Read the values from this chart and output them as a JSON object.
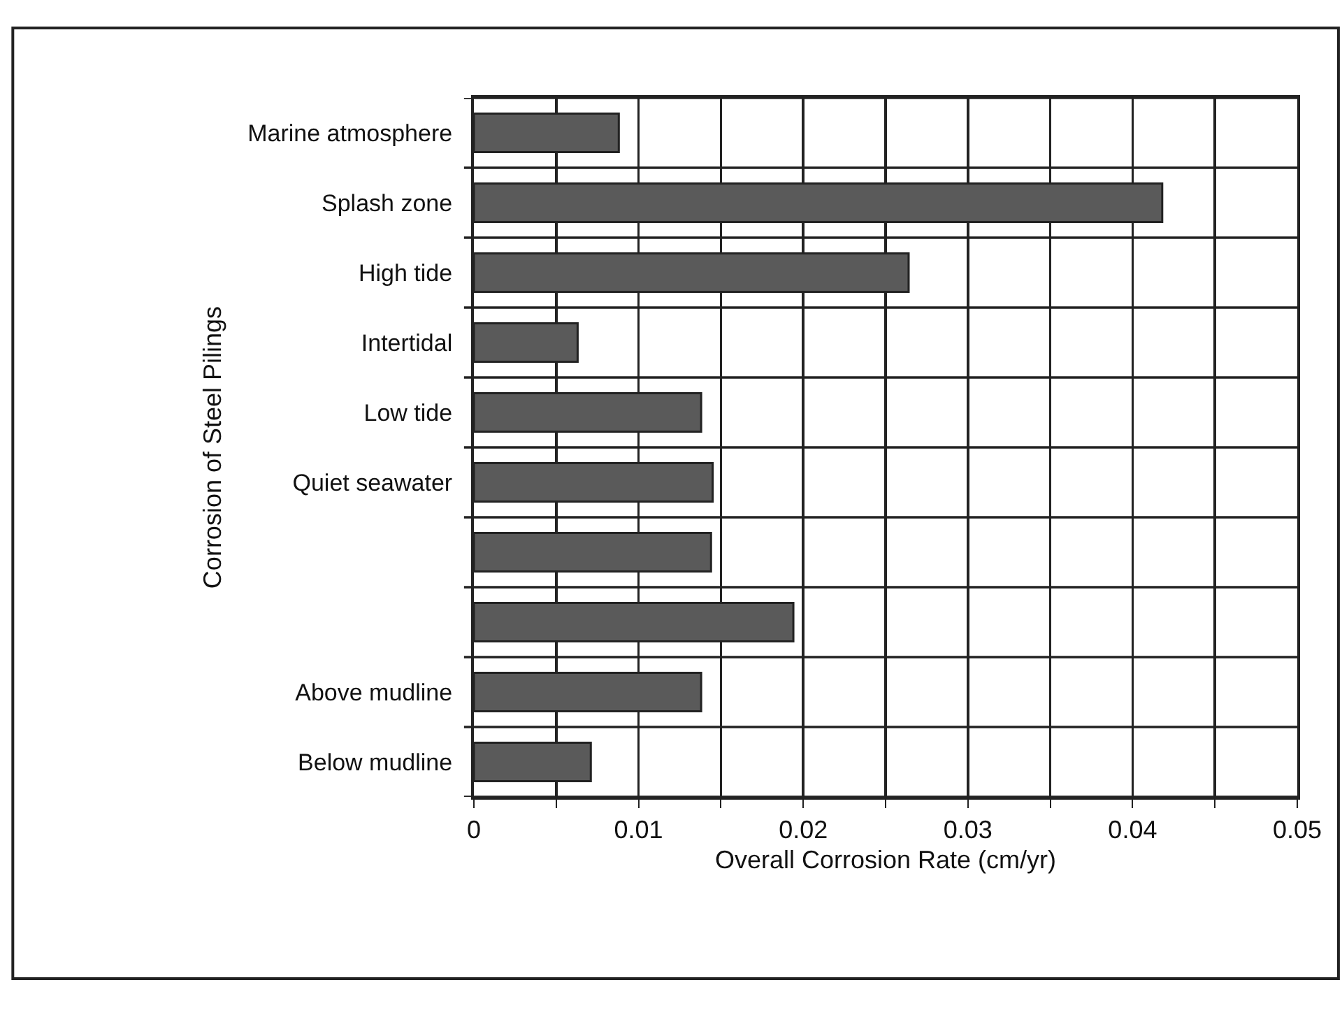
{
  "chart_data": {
    "type": "bar",
    "orientation": "horizontal",
    "categories": [
      "Marine atmosphere",
      "Splash zone",
      "High tide",
      "Intertidal",
      "Low tide",
      "Quiet seawater",
      null,
      null,
      "Above mudline",
      "Below mudline"
    ],
    "values": [
      0.0088,
      0.0418,
      0.0264,
      0.0063,
      0.0138,
      0.0145,
      0.0144,
      0.0194,
      0.0138,
      0.0071
    ],
    "color": "#5a5a5a",
    "xlabel": "Overall Corrosion Rate (cm/yr)",
    "ylabel": "Corrosion of Steel Pilings",
    "xlim": [
      0,
      0.05
    ],
    "xticks": [
      0,
      {
        "value": 0.005,
        "label": null
      },
      0.01,
      {
        "value": 0.015,
        "label": null
      },
      0.02,
      {
        "value": 0.025,
        "label": null
      },
      0.03,
      {
        "value": 0.035,
        "label": null
      },
      0.04,
      {
        "value": 0.045,
        "label": null
      },
      0.05
    ],
    "grid": true
  }
}
